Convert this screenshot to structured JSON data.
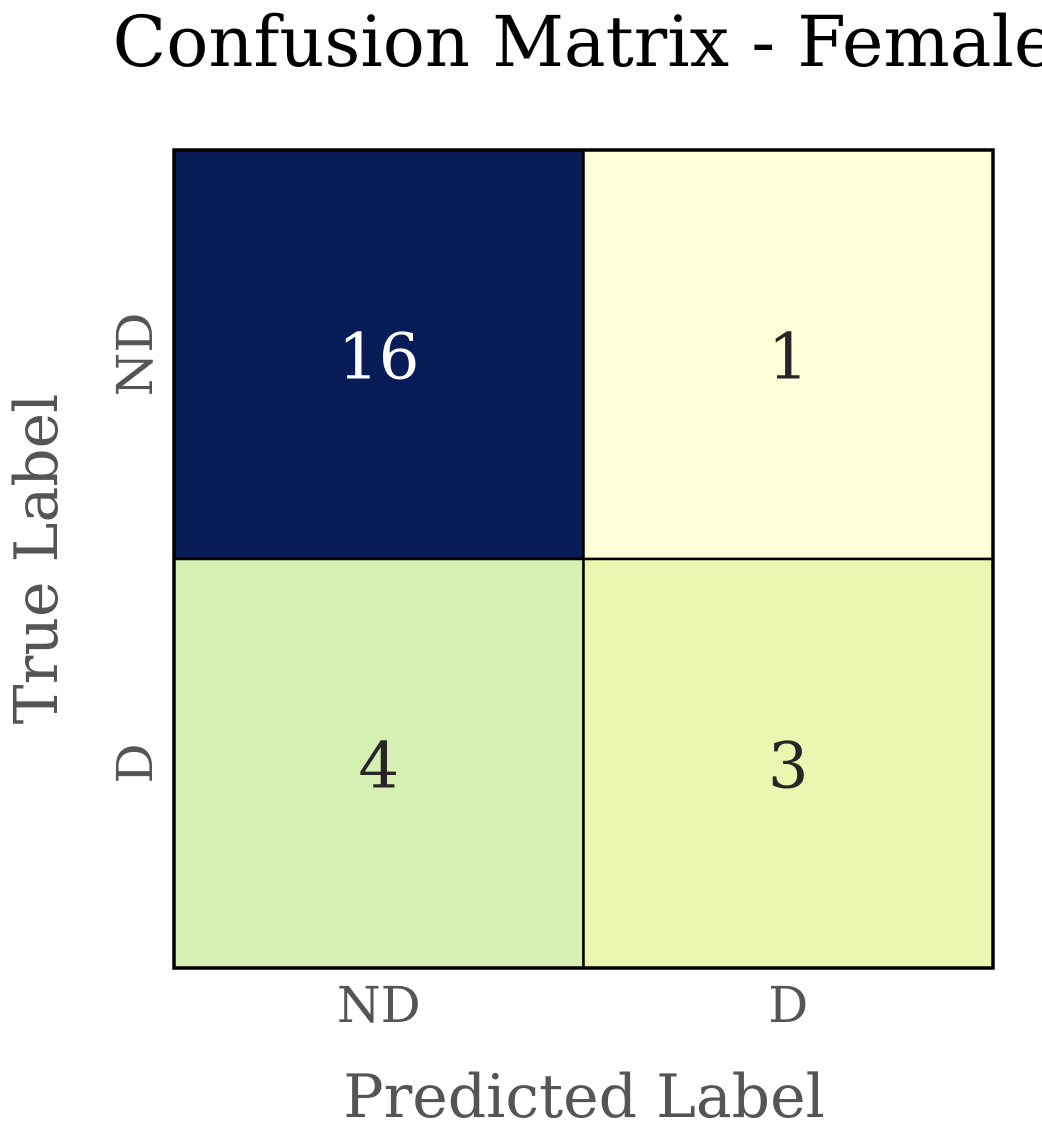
{
  "chart_data": {
    "type": "heatmap",
    "title": "Confusion Matrix - Female",
    "xlabel": "Predicted Label",
    "ylabel": "True Label",
    "x_categories": [
      "ND",
      "D"
    ],
    "y_categories": [
      "ND",
      "D"
    ],
    "values": [
      [
        16,
        1
      ],
      [
        4,
        3
      ]
    ],
    "colormap": "YlGnBu",
    "cell_colors": [
      [
        "#081d58",
        "#ffffd9"
      ],
      [
        "#d6efb3",
        "#e9f7b1"
      ]
    ],
    "annotation_colors": [
      [
        "#ffffff",
        "#262626"
      ],
      [
        "#262626",
        "#262626"
      ]
    ],
    "colorbar": false,
    "grid": false
  }
}
